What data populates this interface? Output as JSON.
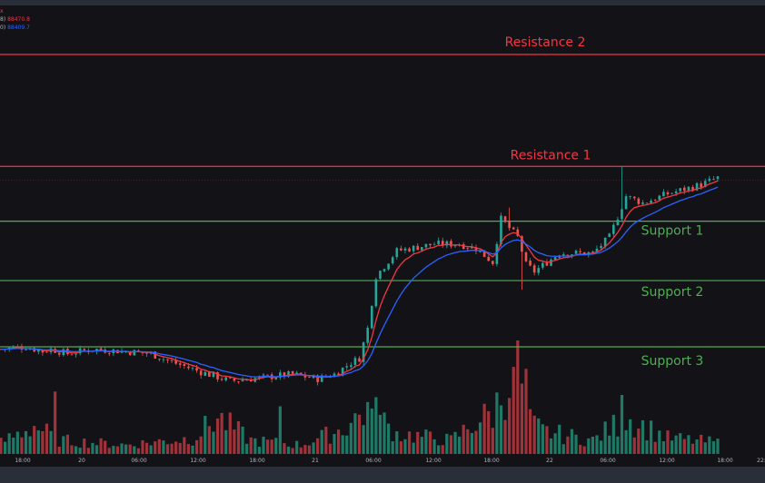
{
  "legend": {
    "close_mark": "x",
    "ma1_prefix": "8)",
    "ma1_value": "88470.8",
    "ma2_prefix": "0)",
    "ma2_value": "88409.7"
  },
  "chart_data": {
    "type": "candlestick",
    "title": "",
    "xlabel": "",
    "ylabel": "",
    "x_ticks": [
      "18:00",
      "20",
      "06:00",
      "12:00",
      "18:00",
      "21",
      "06:00",
      "12:00",
      "18:00",
      "22",
      "06:00",
      "12:00",
      "18:00",
      "22:"
    ],
    "levels": [
      {
        "name": "Resistance 2",
        "kind": "resistance",
        "value": 94600
      },
      {
        "name": "Resistance 1",
        "kind": "resistance",
        "value": 89700
      },
      {
        "name": "Support 1",
        "kind": "support",
        "value": 87300
      },
      {
        "name": "Support 2",
        "kind": "support",
        "value": 84700
      },
      {
        "name": "Support 3",
        "kind": "support",
        "value": 81800
      }
    ],
    "colors": {
      "up": "#26a69a",
      "down": "#ef5350",
      "resistance": "#f23645",
      "support": "#4caf50",
      "ma1": "#f23645",
      "ma2": "#2962ff",
      "volume_up": "#1e7a66",
      "volume_down": "#a0333a"
    },
    "price_series": {
      "step_hours": 0.5,
      "anchors_price": [
        [
          0,
          81700
        ],
        [
          6,
          81800
        ],
        [
          10,
          81600
        ],
        [
          12,
          81700
        ],
        [
          16,
          81500
        ],
        [
          22,
          81700
        ],
        [
          30,
          81600
        ],
        [
          36,
          81500
        ],
        [
          40,
          81200
        ],
        [
          48,
          80700
        ],
        [
          55,
          80300
        ],
        [
          60,
          80400
        ],
        [
          70,
          80600
        ],
        [
          76,
          80400
        ],
        [
          80,
          80600
        ],
        [
          84,
          81100
        ],
        [
          86,
          81300
        ],
        [
          88,
          82600
        ],
        [
          90,
          84900
        ],
        [
          95,
          86000
        ],
        [
          104,
          86300
        ],
        [
          110,
          86300
        ],
        [
          114,
          86100
        ],
        [
          118,
          85500
        ],
        [
          120,
          87400
        ],
        [
          124,
          86600
        ],
        [
          126,
          85400
        ],
        [
          128,
          85100
        ],
        [
          134,
          85900
        ],
        [
          142,
          85900
        ],
        [
          146,
          86600
        ],
        [
          150,
          88400
        ],
        [
          154,
          88100
        ],
        [
          160,
          88500
        ],
        [
          168,
          88900
        ],
        [
          172,
          89200
        ]
      ],
      "anchors_volume": [
        [
          0,
          10
        ],
        [
          8,
          25
        ],
        [
          14,
          12
        ],
        [
          30,
          8
        ],
        [
          46,
          14
        ],
        [
          52,
          32
        ],
        [
          60,
          12
        ],
        [
          72,
          8
        ],
        [
          82,
          22
        ],
        [
          88,
          40
        ],
        [
          95,
          18
        ],
        [
          108,
          12
        ],
        [
          114,
          28
        ],
        [
          118,
          36
        ],
        [
          122,
          65
        ],
        [
          126,
          30
        ],
        [
          130,
          20
        ],
        [
          142,
          12
        ],
        [
          150,
          32
        ],
        [
          160,
          14
        ],
        [
          172,
          10
        ]
      ],
      "volume_spikes": [
        [
          13,
          55
        ],
        [
          67,
          42
        ],
        [
          89,
          40
        ],
        [
          90,
          50
        ],
        [
          124,
          100
        ],
        [
          125,
          62
        ],
        [
          126,
          75
        ],
        [
          149,
          52
        ]
      ],
      "wick_spikes": [
        [
          122,
          87900
        ],
        [
          125,
          84300
        ],
        [
          149,
          89700
        ]
      ],
      "seed": 7
    }
  }
}
